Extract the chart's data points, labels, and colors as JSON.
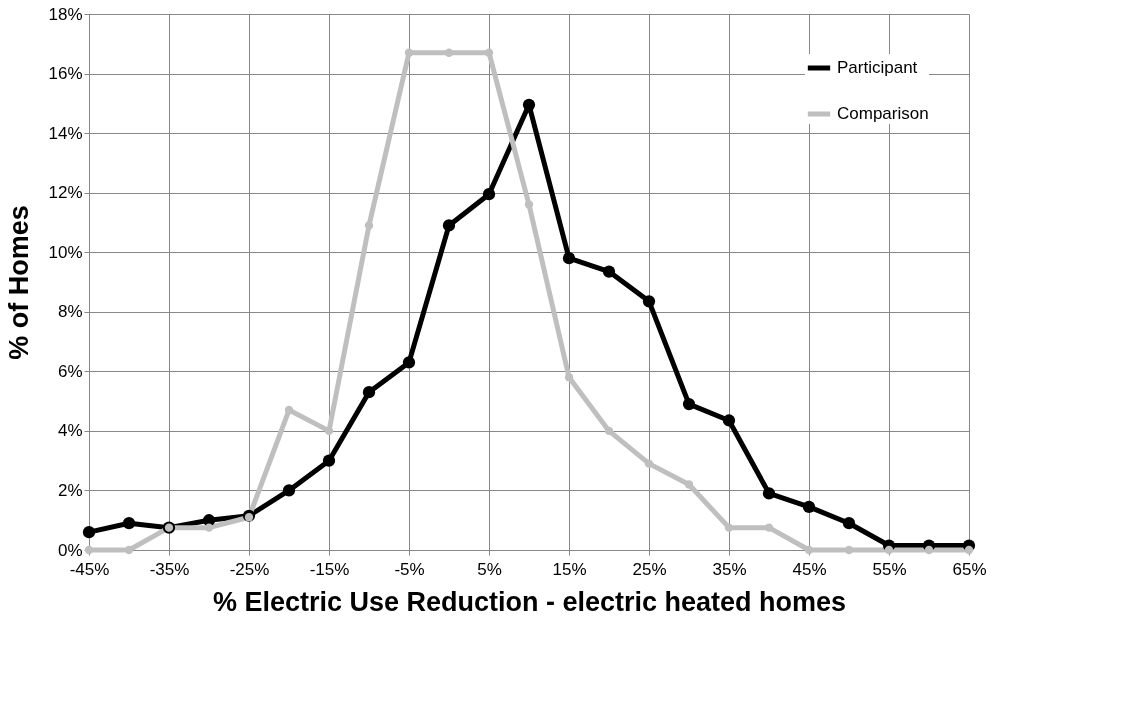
{
  "chart_data": {
    "type": "line",
    "xlabel": "% Electric Use Reduction - electric heated homes",
    "ylabel": "% of Homes",
    "x": [
      -45,
      -40,
      -35,
      -30,
      -25,
      -20,
      -15,
      -10,
      -5,
      0,
      5,
      10,
      15,
      20,
      25,
      30,
      35,
      40,
      45,
      50,
      55,
      60,
      65
    ],
    "series": [
      {
        "name": "Participant",
        "color": "#000000",
        "values": [
          0.6,
          0.9,
          0.75,
          1.0,
          1.15,
          2.0,
          3.0,
          5.3,
          6.3,
          10.9,
          11.95,
          14.95,
          9.8,
          9.35,
          8.35,
          4.9,
          4.35,
          1.9,
          1.45,
          0.9,
          0.15,
          0.15,
          0.15
        ]
      },
      {
        "name": "Comparison",
        "color": "#bfbfbf",
        "values": [
          0,
          0,
          0.75,
          0.75,
          1.1,
          4.7,
          4.0,
          10.9,
          16.7,
          16.7,
          16.7,
          11.6,
          5.8,
          4.0,
          2.9,
          2.2,
          0.75,
          0.75,
          0,
          0,
          0,
          0,
          0
        ]
      }
    ],
    "xlim": [
      -45,
      65
    ],
    "xticks": [
      {
        "value": -45,
        "label": "-45%"
      },
      {
        "value": -35,
        "label": "-35%"
      },
      {
        "value": -25,
        "label": "-25%"
      },
      {
        "value": -15,
        "label": "-15%"
      },
      {
        "value": -5,
        "label": "-5%"
      },
      {
        "value": 5,
        "label": "5%"
      },
      {
        "value": 15,
        "label": "15%"
      },
      {
        "value": 25,
        "label": "25%"
      },
      {
        "value": 35,
        "label": "35%"
      },
      {
        "value": 45,
        "label": "45%"
      },
      {
        "value": 55,
        "label": "55%"
      },
      {
        "value": 65,
        "label": "65%"
      }
    ],
    "ylim": [
      0,
      18
    ],
    "yticks": [
      {
        "value": 0,
        "label": "0%"
      },
      {
        "value": 2,
        "label": "2%"
      },
      {
        "value": 4,
        "label": "4%"
      },
      {
        "value": 6,
        "label": "6%"
      },
      {
        "value": 8,
        "label": "8%"
      },
      {
        "value": 10,
        "label": "10%"
      },
      {
        "value": 12,
        "label": "12%"
      },
      {
        "value": 14,
        "label": "14%"
      },
      {
        "value": 16,
        "label": "16%"
      },
      {
        "value": 18,
        "label": "18%"
      }
    ],
    "grid": true,
    "legend": "top right",
    "marker": "circle",
    "line_style": "solid"
  }
}
